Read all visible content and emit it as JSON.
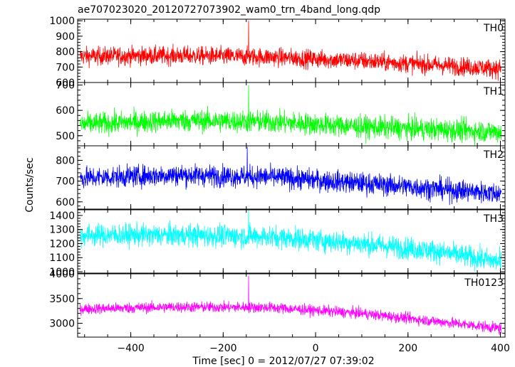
{
  "chart_data": {
    "type": "line",
    "title": "ae707023020_20120727073902_wam0_trn_4band_long.qdp",
    "xlabel": "Time [sec] 0 = 2012/07/27 07:39:02",
    "ylabel": "Counts/sec",
    "xlim": [
      -515,
      410
    ],
    "xticks": [
      -400,
      -200,
      0,
      200,
      400
    ],
    "x_tick_labels": [
      "−400",
      "−200",
      "0",
      "200",
      "400"
    ],
    "grid": false,
    "panels": [
      {
        "name": "TH0",
        "color": "#ff0000",
        "ylim": [
          600,
          1010
        ],
        "yticks": [
          600,
          700,
          800,
          900,
          1000
        ],
        "y_tick_labels": [
          "600",
          "700",
          "800",
          "900",
          "1000"
        ],
        "trend": [
          [
            -510,
            770
          ],
          [
            -300,
            775
          ],
          [
            -100,
            765
          ],
          [
            100,
            740
          ],
          [
            250,
            715
          ],
          [
            400,
            690
          ]
        ],
        "noise": 30,
        "spikes": [
          {
            "x": -145,
            "y": 1000
          }
        ],
        "dips": [
          {
            "x": 395,
            "y": 610
          }
        ]
      },
      {
        "name": "TH1",
        "color": "#00ff00",
        "ylim": [
          460,
          710
        ],
        "yticks": [
          500,
          600,
          700
        ],
        "y_tick_labels": [
          "500",
          "600",
          "700"
        ],
        "trend": [
          [
            -510,
            545
          ],
          [
            -300,
            560
          ],
          [
            -100,
            555
          ],
          [
            100,
            535
          ],
          [
            250,
            525
          ],
          [
            400,
            515
          ]
        ],
        "noise": 22,
        "spikes": [
          {
            "x": -145,
            "y": 700
          }
        ],
        "dips": []
      },
      {
        "name": "TH2",
        "color": "#0000ff",
        "ylim": [
          565,
          870
        ],
        "yticks": [
          600,
          700,
          800
        ],
        "y_tick_labels": [
          "600",
          "700",
          "800"
        ],
        "trend": [
          [
            -510,
            715
          ],
          [
            -300,
            730
          ],
          [
            -100,
            720
          ],
          [
            100,
            690
          ],
          [
            250,
            665
          ],
          [
            400,
            640
          ]
        ],
        "noise": 26,
        "spikes": [
          {
            "x": -148,
            "y": 865
          }
        ],
        "dips": [
          {
            "x": 290,
            "y": 585
          }
        ]
      },
      {
        "name": "TH3",
        "color": "#00ffff",
        "ylim": [
          990,
          1440
        ],
        "yticks": [
          1000,
          1100,
          1200,
          1300,
          1400
        ],
        "y_tick_labels": [
          "1000",
          "1100",
          "1200",
          "1300",
          "1400"
        ],
        "trend": [
          [
            -510,
            1260
          ],
          [
            -300,
            1260
          ],
          [
            -100,
            1250
          ],
          [
            100,
            1200
          ],
          [
            250,
            1150
          ],
          [
            400,
            1070
          ]
        ],
        "noise": 40,
        "spikes": [
          {
            "x": -145,
            "y": 1440
          }
        ],
        "dips": [
          {
            "x": 400,
            "y": 1000
          }
        ]
      },
      {
        "name": "TH0123",
        "color": "#ff00ff",
        "ylim": [
          2720,
          4000
        ],
        "yticks": [
          3000,
          3500,
          4000
        ],
        "y_tick_labels": [
          "3000",
          "3500",
          "4000"
        ],
        "trend": [
          [
            -510,
            3290
          ],
          [
            -300,
            3330
          ],
          [
            -100,
            3320
          ],
          [
            100,
            3200
          ],
          [
            250,
            3050
          ],
          [
            400,
            2900
          ]
        ],
        "noise": 55,
        "spikes": [
          {
            "x": -145,
            "y": 3960
          }
        ],
        "dips": [
          {
            "x": 398,
            "y": 2760
          }
        ]
      }
    ]
  }
}
